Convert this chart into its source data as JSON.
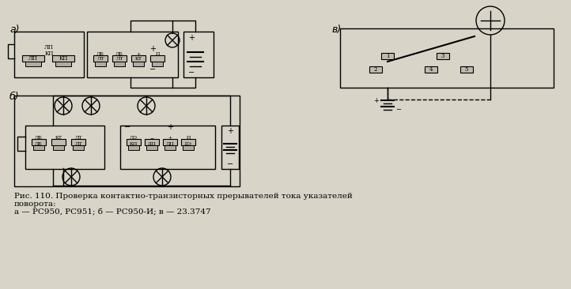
{
  "background_color": "#d8d4c8",
  "title_text": "Рис. 110. Проверка контактно-транзисторных прерывателей тока указателей\nповорота:\na — РС950, РС951; б — РС950-И; в — 23.3747",
  "label_a": "a)",
  "label_b": "б)",
  "label_v": "в)"
}
